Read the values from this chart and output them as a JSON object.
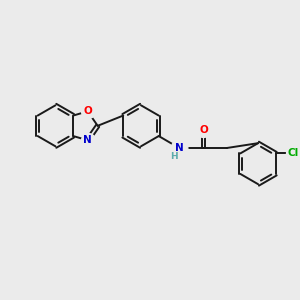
{
  "background_color": "#ebebeb",
  "bond_color": "#1a1a1a",
  "atom_colors": {
    "O": "#ff0000",
    "N": "#0000cc",
    "Cl": "#00aa00",
    "H": "#5aabab",
    "C": "#1a1a1a"
  },
  "bond_lw": 1.4,
  "ring_r": 0.72,
  "figsize": [
    3.0,
    3.0
  ],
  "dpi": 100
}
